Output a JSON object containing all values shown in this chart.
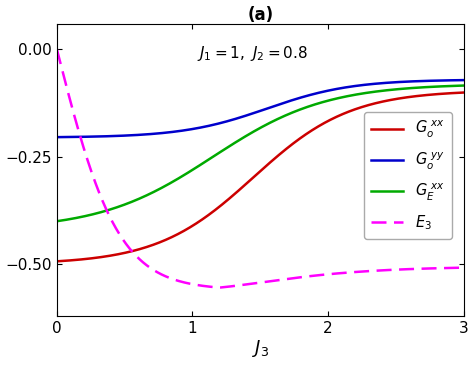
{
  "title": "(a)",
  "subtitle": "$J_1=1,\\ J_2=0.8$",
  "xlabel": "$J_3$",
  "xlim": [
    0,
    3
  ],
  "ylim": [
    -0.62,
    0.06
  ],
  "yticks": [
    0,
    -0.25,
    -0.5
  ],
  "xticks": [
    0,
    1,
    2,
    3
  ],
  "background_color": "#ffffff",
  "curves": {
    "G_o_xx": {
      "color": "#cc0000",
      "linestyle": "-",
      "linewidth": 1.8,
      "label": "$G_o^{\\ xx}$"
    },
    "G_o_yy": {
      "color": "#0000cc",
      "linestyle": "-",
      "linewidth": 1.8,
      "label": "$G_o^{\\ yy}$"
    },
    "G_E_xx": {
      "color": "#00aa00",
      "linestyle": "-",
      "linewidth": 1.8,
      "label": "$G_E^{\\ xx}$"
    },
    "E3": {
      "color": "#ff00ff",
      "linestyle": "--",
      "linewidth": 1.8,
      "label": "$E_3$",
      "dashes": [
        6,
        3
      ]
    }
  }
}
